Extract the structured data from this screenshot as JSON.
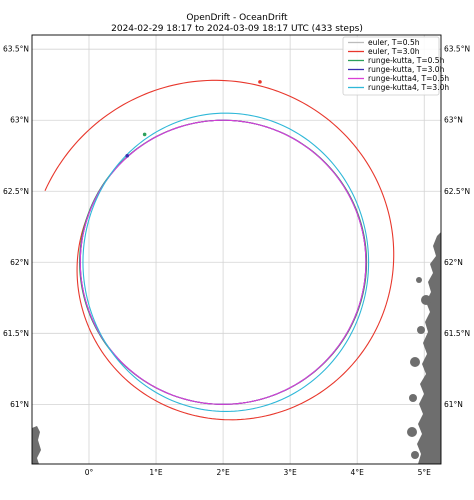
{
  "chart_data": {
    "type": "line",
    "title": "OpenDrift - OceanDrift",
    "subtitle": "2024-02-29 18:17 to 2024-03-09 18:17 UTC (433 steps)",
    "xlabel": "",
    "ylabel": "",
    "xlim": [
      -0.85,
      5.25
    ],
    "ylim": [
      60.58,
      63.6
    ],
    "x_ticks": [
      {
        "value": 0,
        "label": "0°"
      },
      {
        "value": 1,
        "label": "1°E"
      },
      {
        "value": 2,
        "label": "2°E"
      },
      {
        "value": 3,
        "label": "3°E"
      },
      {
        "value": 4,
        "label": "4°E"
      },
      {
        "value": 5,
        "label": "5°E"
      }
    ],
    "y_ticks": [
      {
        "value": 61.0,
        "label": "61°N"
      },
      {
        "value": 61.5,
        "label": "61.5°N"
      },
      {
        "value": 62.0,
        "label": "62°N"
      },
      {
        "value": 62.5,
        "label": "62.5°N"
      },
      {
        "value": 63.0,
        "label": "63°N"
      },
      {
        "value": 63.5,
        "label": "63.5°N"
      }
    ],
    "grid": true,
    "legend_position": "top-right",
    "series": [
      {
        "name": "euler, T=0.5h",
        "color": "#bcbcbc",
        "center": [
          2.0,
          62.0
        ],
        "rlon": 2.13,
        "rlat": 1.0,
        "growth": 0.0,
        "turns": 1.0,
        "start_angle_deg": 158
      },
      {
        "name": "euler, T=3.0h",
        "color": "#e8372c",
        "center": [
          2.0,
          62.0
        ],
        "rlon": 2.13,
        "rlat": 1.0,
        "growth": 0.345,
        "turns": 1.0,
        "start_angle_deg": 158
      },
      {
        "name": "runge-kutta, T=0.5h",
        "color": "#2ca05a",
        "center": [
          2.0,
          62.0
        ],
        "rlon": 2.14,
        "rlat": 1.0,
        "growth": 0.0,
        "turns": 1.0,
        "start_angle_deg": 158
      },
      {
        "name": "runge-kutta, T=3.0h",
        "color": "#3a2fb0",
        "center": [
          2.0,
          62.0
        ],
        "rlon": 2.13,
        "rlat": 1.0,
        "growth": 0.0,
        "turns": 1.0,
        "start_angle_deg": 158
      },
      {
        "name": "runge-kutta4, T=0.5h",
        "color": "#d93fd6",
        "center": [
          2.0,
          62.0
        ],
        "rlon": 2.13,
        "rlat": 1.0,
        "growth": 0.0,
        "turns": 1.0,
        "start_angle_deg": 158
      },
      {
        "name": "runge-kutta4, T=3.0h",
        "color": "#2fb8d8",
        "center": [
          2.04,
          62.0
        ],
        "rlon": 2.13,
        "rlat": 1.05,
        "growth": 0.0,
        "turns": 1.0,
        "start_angle_deg": 143
      }
    ],
    "markers": [
      {
        "series": "euler, T=3.0h",
        "x": 2.55,
        "y": 63.27
      },
      {
        "series": "runge-kutta, T=0.5h",
        "x": 0.83,
        "y": 62.9
      },
      {
        "series": "runge-kutta, T=3.0h",
        "x": 0.57,
        "y": 62.75
      }
    ],
    "land_color": "#6e6e6e"
  }
}
